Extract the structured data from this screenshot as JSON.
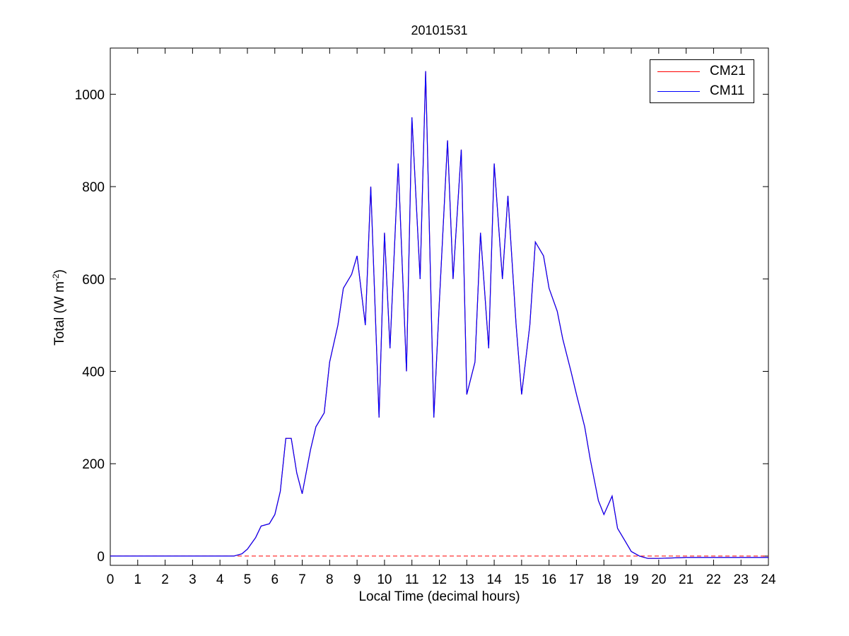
{
  "chart_data": {
    "type": "line",
    "title": "20101531",
    "xlabel": "Local Time (decimal hours)",
    "ylabel_main": "Total (W m",
    "ylabel_sup": "-2",
    "ylabel_close": ")",
    "xlim": [
      0,
      24
    ],
    "ylim": [
      -20,
      1100
    ],
    "xticks": [
      0,
      1,
      2,
      3,
      4,
      5,
      6,
      7,
      8,
      9,
      10,
      11,
      12,
      13,
      14,
      15,
      16,
      17,
      18,
      19,
      20,
      21,
      22,
      23,
      24
    ],
    "yticks": [
      0,
      200,
      400,
      600,
      800,
      1000
    ],
    "grid": false,
    "legend_position": "top-right",
    "colors": {
      "CM21": "#ff0000",
      "CM11": "#0000ff",
      "zero_line": "#ff0000"
    },
    "series": [
      {
        "name": "CM21",
        "color": "#ff0000",
        "x": [
          0,
          4.5,
          4.8,
          5.0,
          5.3,
          5.5,
          5.8,
          6.0,
          6.2,
          6.4,
          6.6,
          6.8,
          7.0,
          7.3,
          7.5,
          7.8,
          8.0,
          8.3,
          8.5,
          8.8,
          9.0,
          9.3,
          9.5,
          9.8,
          10.0,
          10.2,
          10.5,
          10.8,
          11.0,
          11.3,
          11.5,
          11.8,
          12.0,
          12.3,
          12.5,
          12.8,
          13.0,
          13.3,
          13.5,
          13.8,
          14.0,
          14.3,
          14.5,
          14.8,
          15.0,
          15.3,
          15.5,
          15.8,
          16.0,
          16.3,
          16.5,
          16.8,
          17.0,
          17.3,
          17.5,
          17.8,
          18.0,
          18.3,
          18.5,
          18.8,
          19.0,
          19.3,
          19.6,
          20.0,
          21.0,
          22.0,
          23.0,
          24.0
        ],
        "values": [
          0,
          0,
          5,
          15,
          40,
          65,
          70,
          90,
          140,
          255,
          255,
          180,
          135,
          230,
          280,
          310,
          420,
          500,
          580,
          610,
          650,
          500,
          800,
          300,
          700,
          450,
          850,
          400,
          950,
          600,
          1050,
          300,
          550,
          900,
          600,
          880,
          350,
          420,
          700,
          450,
          850,
          600,
          780,
          500,
          350,
          500,
          680,
          650,
          580,
          530,
          470,
          400,
          350,
          280,
          210,
          120,
          90,
          130,
          60,
          30,
          10,
          0,
          -5,
          -5,
          -3,
          -3,
          -3,
          -3
        ]
      },
      {
        "name": "CM11",
        "color": "#0000ff",
        "x": [
          0,
          4.5,
          4.8,
          5.0,
          5.3,
          5.5,
          5.8,
          6.0,
          6.2,
          6.4,
          6.6,
          6.8,
          7.0,
          7.3,
          7.5,
          7.8,
          8.0,
          8.3,
          8.5,
          8.8,
          9.0,
          9.3,
          9.5,
          9.8,
          10.0,
          10.2,
          10.5,
          10.8,
          11.0,
          11.3,
          11.5,
          11.8,
          12.0,
          12.3,
          12.5,
          12.8,
          13.0,
          13.3,
          13.5,
          13.8,
          14.0,
          14.3,
          14.5,
          14.8,
          15.0,
          15.3,
          15.5,
          15.8,
          16.0,
          16.3,
          16.5,
          16.8,
          17.0,
          17.3,
          17.5,
          17.8,
          18.0,
          18.3,
          18.5,
          18.8,
          19.0,
          19.3,
          19.6,
          20.0,
          21.0,
          22.0,
          23.0,
          24.0
        ],
        "values": [
          0,
          0,
          5,
          15,
          40,
          65,
          70,
          90,
          140,
          255,
          255,
          180,
          135,
          230,
          280,
          310,
          420,
          500,
          580,
          610,
          650,
          500,
          800,
          300,
          700,
          450,
          850,
          400,
          950,
          600,
          1050,
          300,
          550,
          900,
          600,
          880,
          350,
          420,
          700,
          450,
          850,
          600,
          780,
          500,
          350,
          500,
          680,
          650,
          580,
          530,
          470,
          400,
          350,
          280,
          210,
          120,
          90,
          130,
          60,
          30,
          10,
          0,
          -5,
          -5,
          -3,
          -3,
          -3,
          -3
        ]
      }
    ]
  }
}
